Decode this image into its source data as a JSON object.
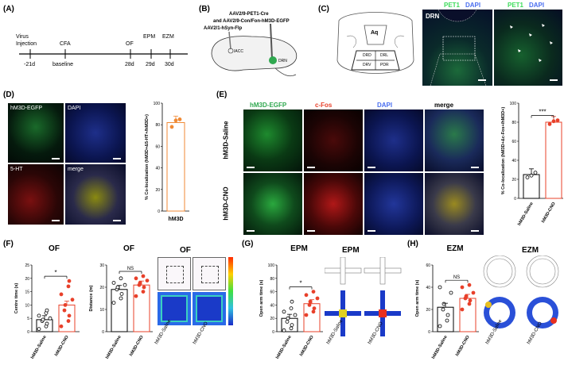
{
  "panels": {
    "A": {
      "label": "(A)",
      "events": [
        "Virus Injection",
        "CFA",
        "OF",
        "EPM",
        "EZM"
      ],
      "days": [
        "-21d",
        "baseline",
        "28d",
        "29d",
        "30d"
      ]
    },
    "B": {
      "label": "(B)",
      "line1": "AAV2/9-PET1-Cre",
      "line2": "and AAV2/9-Con/Fon-hM3D-EGFP",
      "line3": "AAV2/1-hSyn-Flp",
      "regions": [
        "IACC",
        "DRN"
      ]
    },
    "C": {
      "label": "(C)",
      "atlas": [
        "Aq",
        "DRD",
        "DRV",
        "DRL",
        "PDR"
      ],
      "img1_title": "DRN",
      "stain": {
        "pet1": "PET1",
        "dapi": "DAPI"
      }
    },
    "D": {
      "label": "(D)",
      "tiles": [
        "hM3D-EGFP",
        "DAPI",
        "5-HT",
        "merge"
      ],
      "ylabel": "% Co-localization (hM3D+&5-HT+/hM3D+)",
      "xlabel": "hM3D"
    },
    "E": {
      "label": "(E)",
      "cols": [
        "hM3D-EGFP",
        "c-Fos",
        "DAPI",
        "merge"
      ],
      "rows": [
        "hM3D-Saline",
        "hM3D-CNO"
      ],
      "ylabel": "% Co-localization (hM3D+&c-Fos+/hM3D+)",
      "sig": "***"
    },
    "F": {
      "label": "(F)",
      "titles": [
        "OF",
        "OF",
        "OF"
      ],
      "ylabel1": "Centre time (s)",
      "ylabel2": "Distance (m)",
      "sig1": "*",
      "sig2": "NS"
    },
    "G": {
      "label": "(G)",
      "titles": [
        "EPM",
        "EPM"
      ],
      "ylabel": "Open arm time (s)",
      "sig": "*"
    },
    "H": {
      "label": "(H)",
      "titles": [
        "EZM",
        "EZM"
      ],
      "ylabel": "Open arm time (s)",
      "sig": "NS"
    }
  },
  "groups": [
    "hM3D-Saline",
    "hM3D-CNO"
  ],
  "colors": {
    "saline": "#000000",
    "cno": "#e8402a",
    "orange": "#f08a35",
    "pet1": "#3ddc5a",
    "dapi": "#4a6ef0",
    "cfos": "#ff3030"
  },
  "chart_data": [
    {
      "id": "D",
      "type": "bar",
      "categories": [
        "hM3D"
      ],
      "values": [
        82
      ],
      "points": [
        [
          78,
          84,
          85
        ]
      ],
      "ylim": [
        0,
        100
      ],
      "yticks": [
        "0",
        "20",
        "40",
        "60",
        "80",
        "100"
      ]
    },
    {
      "id": "E",
      "type": "bar",
      "categories": [
        "hM3D-Saline",
        "hM3D-CNO"
      ],
      "values": [
        25,
        80
      ],
      "points": [
        [
          22,
          24,
          27
        ],
        [
          78,
          81,
          82
        ]
      ],
      "ylim": [
        0,
        100
      ],
      "yticks": [
        "0",
        "20",
        "40",
        "60",
        "80",
        "100"
      ]
    },
    {
      "id": "F1",
      "type": "bar",
      "categories": [
        "hM3D-Saline",
        "hM3D-CNO"
      ],
      "values": [
        4.5,
        10
      ],
      "ylim": [
        0,
        25
      ],
      "yticks": [
        "0",
        "5",
        "10",
        "15",
        "20",
        "25"
      ],
      "points": [
        [
          1,
          2,
          3,
          4,
          4.5,
          5,
          6,
          7,
          8
        ],
        [
          2,
          4,
          6,
          8,
          10,
          12,
          14,
          17,
          19
        ]
      ]
    },
    {
      "id": "F2",
      "type": "bar",
      "categories": [
        "hM3D-Saline",
        "hM3D-CNO"
      ],
      "values": [
        19,
        21
      ],
      "ylim": [
        0,
        30
      ],
      "yticks": [
        "0",
        "10",
        "20",
        "30"
      ],
      "points": [
        [
          13,
          15,
          17,
          19,
          20,
          21,
          22,
          24
        ],
        [
          16,
          18,
          20,
          21,
          22,
          23,
          24,
          25
        ]
      ]
    },
    {
      "id": "G",
      "type": "bar",
      "categories": [
        "hM3D-Saline",
        "hM3D-CNO"
      ],
      "values": [
        20,
        42
      ],
      "ylim": [
        0,
        100
      ],
      "yticks": [
        "0",
        "20",
        "40",
        "60",
        "80",
        "100"
      ],
      "points": [
        [
          2,
          5,
          10,
          15,
          20,
          25,
          30,
          35,
          45
        ],
        [
          25,
          30,
          35,
          40,
          45,
          50,
          55,
          60
        ]
      ]
    },
    {
      "id": "H",
      "type": "bar",
      "categories": [
        "hM3D-Saline",
        "hM3D-CNO"
      ],
      "values": [
        22,
        30
      ],
      "ylim": [
        0,
        60
      ],
      "yticks": [
        "0",
        "20",
        "40",
        "60"
      ],
      "points": [
        [
          5,
          10,
          15,
          20,
          25,
          35,
          40
        ],
        [
          20,
          25,
          28,
          30,
          32,
          35,
          40,
          42
        ]
      ]
    }
  ]
}
